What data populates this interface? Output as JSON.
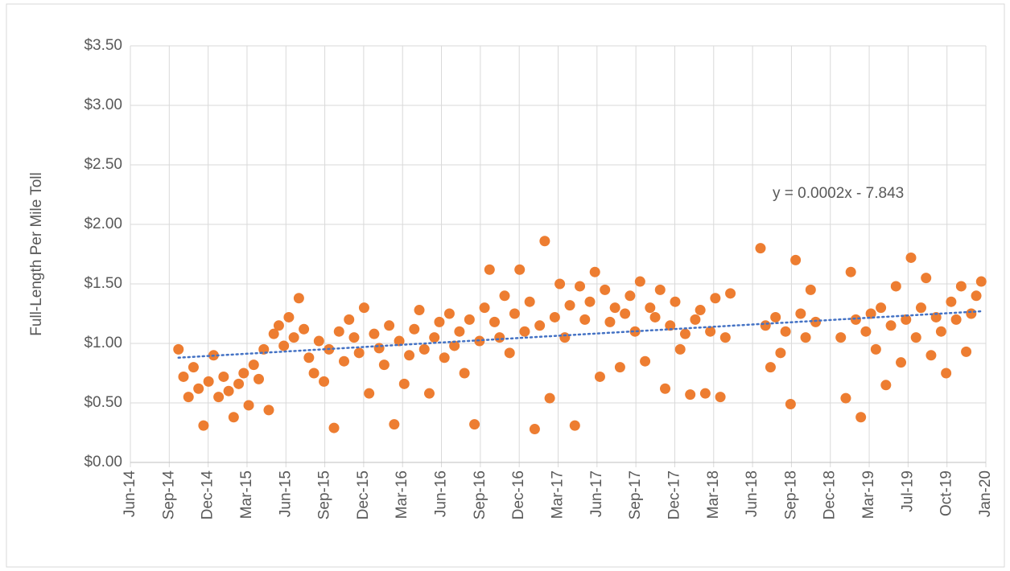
{
  "chart_data": {
    "type": "scatter",
    "y_label": "Full-Length Per Mile Toll",
    "annotation": "y = 0.0002x - 7.843",
    "grid": true,
    "xlim": [
      41791,
      43837
    ],
    "xticks": [
      {
        "value": 41791,
        "label": "Jun-14"
      },
      {
        "value": 41884,
        "label": "Sep-14"
      },
      {
        "value": 41977,
        "label": "Dec-14"
      },
      {
        "value": 42070,
        "label": "Mar-15"
      },
      {
        "value": 42163,
        "label": "Jun-15"
      },
      {
        "value": 42256,
        "label": "Sep-15"
      },
      {
        "value": 42349,
        "label": "Dec-15"
      },
      {
        "value": 42442,
        "label": "Mar-16"
      },
      {
        "value": 42535,
        "label": "Jun-16"
      },
      {
        "value": 42628,
        "label": "Sep-16"
      },
      {
        "value": 42721,
        "label": "Dec-16"
      },
      {
        "value": 42814,
        "label": "Mar-17"
      },
      {
        "value": 42907,
        "label": "Jun-17"
      },
      {
        "value": 43000,
        "label": "Sep-17"
      },
      {
        "value": 43093,
        "label": "Dec-17"
      },
      {
        "value": 43186,
        "label": "Mar-18"
      },
      {
        "value": 43279,
        "label": "Jun-18"
      },
      {
        "value": 43372,
        "label": "Sep-18"
      },
      {
        "value": 43465,
        "label": "Dec-18"
      },
      {
        "value": 43558,
        "label": "Mar-19"
      },
      {
        "value": 43651,
        "label": "Jul-19"
      },
      {
        "value": 43744,
        "label": "Oct-19"
      },
      {
        "value": 43837,
        "label": "Jan-20"
      }
    ],
    "ylim": [
      0,
      3.5
    ],
    "yticks": [
      {
        "value": 0,
        "label": "$0.00"
      },
      {
        "value": 0.5,
        "label": "$0.50"
      },
      {
        "value": 1,
        "label": "$1.00"
      },
      {
        "value": 1.5,
        "label": "$1.50"
      },
      {
        "value": 2,
        "label": "$2.00"
      },
      {
        "value": 2.5,
        "label": "$2.50"
      },
      {
        "value": 3,
        "label": "$3.00"
      },
      {
        "value": 3.5,
        "label": "$3.50"
      }
    ],
    "color": "#ed7d31",
    "x": [
      41906,
      41918,
      41930,
      41942,
      41954,
      41966,
      41978,
      41990,
      42002,
      42014,
      42026,
      42038,
      42050,
      42062,
      42074,
      42086,
      42098,
      42110,
      42122,
      42134,
      42146,
      42158,
      42170,
      42182,
      42194,
      42206,
      42218,
      42230,
      42242,
      42254,
      42266,
      42278,
      42290,
      42302,
      42314,
      42326,
      42338,
      42350,
      42362,
      42374,
      42386,
      42398,
      42410,
      42422,
      42434,
      42446,
      42458,
      42470,
      42482,
      42494,
      42506,
      42518,
      42530,
      42542,
      42554,
      42566,
      42578,
      42590,
      42602,
      42614,
      42626,
      42638,
      42650,
      42662,
      42674,
      42686,
      42698,
      42710,
      42722,
      42734,
      42746,
      42758,
      42770,
      42782,
      42794,
      42806,
      42818,
      42830,
      42842,
      42854,
      42866,
      42878,
      42890,
      42902,
      42914,
      42926,
      42938,
      42950,
      42962,
      42974,
      42986,
      42998,
      43010,
      43022,
      43034,
      43046,
      43058,
      43070,
      43082,
      43094,
      43106,
      43118,
      43130,
      43142,
      43154,
      43166,
      43178,
      43190,
      43202,
      43214,
      43226,
      43298,
      43310,
      43322,
      43334,
      43346,
      43358,
      43370,
      43382,
      43394,
      43406,
      43418,
      43430,
      43490,
      43502,
      43514,
      43526,
      43538,
      43550,
      43562,
      43574,
      43586,
      43598,
      43610,
      43622,
      43634,
      43646,
      43658,
      43670,
      43682,
      43694,
      43706,
      43718,
      43730,
      43742,
      43754,
      43766,
      43778,
      43790,
      43802,
      43814,
      43826
    ],
    "values": [
      0.95,
      0.72,
      0.55,
      0.8,
      0.62,
      0.31,
      0.68,
      0.9,
      0.55,
      0.72,
      0.6,
      0.38,
      0.66,
      0.75,
      0.48,
      0.82,
      0.7,
      0.95,
      0.44,
      1.08,
      1.15,
      0.98,
      1.22,
      1.05,
      1.38,
      1.12,
      0.88,
      0.75,
      1.02,
      0.68,
      0.95,
      0.29,
      1.1,
      0.85,
      1.2,
      1.05,
      0.92,
      1.3,
      0.58,
      1.08,
      0.96,
      0.82,
      1.15,
      0.32,
      1.02,
      0.66,
      0.9,
      1.12,
      1.28,
      0.95,
      0.58,
      1.05,
      1.18,
      0.88,
      1.25,
      0.98,
      1.1,
      0.75,
      1.2,
      0.32,
      1.02,
      1.3,
      1.62,
      1.18,
      1.05,
      1.4,
      0.92,
      1.25,
      1.62,
      1.1,
      1.35,
      0.28,
      1.15,
      1.86,
      0.54,
      1.22,
      1.5,
      1.05,
      1.32,
      0.31,
      1.48,
      1.2,
      1.35,
      1.6,
      0.72,
      1.45,
      1.18,
      1.3,
      0.8,
      1.25,
      1.4,
      1.1,
      1.52,
      0.85,
      1.3,
      1.22,
      1.45,
      0.62,
      1.15,
      1.35,
      0.95,
      1.08,
      0.57,
      1.2,
      1.28,
      0.58,
      1.1,
      1.38,
      0.55,
      1.05,
      1.42,
      1.8,
      1.15,
      0.8,
      1.22,
      0.92,
      1.1,
      0.49,
      1.7,
      1.25,
      1.05,
      1.45,
      1.18,
      1.05,
      0.54,
      1.6,
      1.2,
      0.38,
      1.1,
      1.25,
      0.95,
      1.3,
      0.65,
      1.15,
      1.48,
      0.84,
      1.2,
      1.72,
      1.05,
      1.3,
      1.55,
      0.9,
      1.22,
      1.1,
      0.75,
      1.35,
      1.2,
      1.48,
      0.93,
      1.25,
      1.4,
      1.52
    ],
    "trendline": {
      "x": [
        41906,
        43826
      ],
      "values": [
        0.88,
        1.27
      ],
      "color": "#4472c4"
    }
  }
}
